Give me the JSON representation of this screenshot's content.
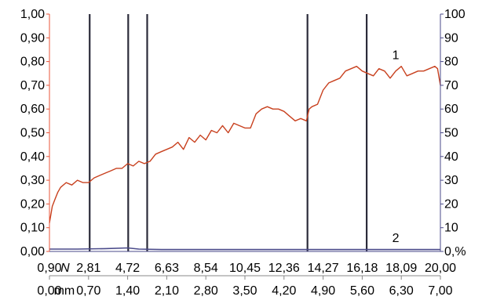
{
  "chart_data": {
    "type": "line",
    "title": "",
    "left_axis": {
      "range": [
        0,
        1
      ],
      "ticks": [
        0,
        0.1,
        0.2,
        0.3,
        0.4,
        0.5,
        0.6,
        0.7,
        0.8,
        0.9,
        1.0
      ],
      "tick_labels": [
        "0,00",
        "0,10",
        "0,20",
        "0,30",
        "0,40",
        "0,50",
        "0,60",
        "0,70",
        "0,80",
        "0,90",
        "1,00"
      ],
      "color": "#e8553a"
    },
    "right_axis": {
      "range": [
        0,
        100
      ],
      "ticks": [
        0,
        10,
        20,
        30,
        40,
        50,
        60,
        70,
        80,
        90,
        100
      ],
      "tick_labels": [
        "0",
        "10",
        "20",
        "30",
        "40",
        "50",
        "60",
        "70",
        "80",
        "90",
        "100"
      ],
      "unit": ",%",
      "color": "#4a4a8a"
    },
    "x_axis_top": {
      "range": [
        0.9,
        20.0
      ],
      "ticks": [
        0.9,
        2.81,
        4.72,
        6.63,
        8.54,
        10.45,
        12.36,
        14.27,
        16.18,
        18.09,
        20.0
      ],
      "tick_labels": [
        "0,90",
        "2,81",
        "4,72",
        "6,63",
        "8,54",
        "10,45",
        "12,36",
        "14,27",
        "16,18",
        "18,09",
        "20,00"
      ],
      "unit": "N"
    },
    "x_axis_bottom": {
      "range": [
        0.0,
        7.0
      ],
      "ticks": [
        0.0,
        0.7,
        1.4,
        2.1,
        2.8,
        3.5,
        4.2,
        4.9,
        5.6,
        6.3,
        7.0
      ],
      "tick_labels": [
        "0,00",
        "0,70",
        "1,40",
        "2,10",
        "2,80",
        "3,50",
        "4,20",
        "4,90",
        "5,60",
        "6,30",
        "7,00"
      ],
      "unit": "mm"
    },
    "vertical_markers_mm": [
      0.72,
      1.41,
      1.75,
      4.62,
      5.68
    ],
    "grid": false,
    "series": [
      {
        "name": "1",
        "axis": "left",
        "color": "#c8401e",
        "x_mm": [
          0.0,
          0.05,
          0.1,
          0.15,
          0.2,
          0.3,
          0.4,
          0.5,
          0.6,
          0.7,
          0.8,
          0.9,
          1.0,
          1.1,
          1.2,
          1.3,
          1.4,
          1.5,
          1.6,
          1.7,
          1.8,
          1.9,
          2.0,
          2.1,
          2.2,
          2.3,
          2.4,
          2.5,
          2.6,
          2.7,
          2.8,
          2.9,
          3.0,
          3.1,
          3.2,
          3.3,
          3.4,
          3.5,
          3.6,
          3.7,
          3.8,
          3.9,
          4.0,
          4.1,
          4.2,
          4.3,
          4.4,
          4.5,
          4.6,
          4.65,
          4.7,
          4.8,
          4.9,
          5.0,
          5.1,
          5.2,
          5.3,
          5.4,
          5.5,
          5.6,
          5.7,
          5.8,
          5.9,
          6.0,
          6.1,
          6.2,
          6.3,
          6.4,
          6.5,
          6.6,
          6.7,
          6.8,
          6.9,
          6.95,
          7.0
        ],
        "y": [
          0.12,
          0.19,
          0.22,
          0.25,
          0.27,
          0.29,
          0.28,
          0.3,
          0.29,
          0.29,
          0.31,
          0.32,
          0.33,
          0.34,
          0.35,
          0.35,
          0.37,
          0.36,
          0.38,
          0.37,
          0.38,
          0.41,
          0.42,
          0.43,
          0.44,
          0.46,
          0.43,
          0.48,
          0.46,
          0.49,
          0.47,
          0.51,
          0.5,
          0.53,
          0.5,
          0.54,
          0.53,
          0.52,
          0.52,
          0.58,
          0.6,
          0.61,
          0.6,
          0.6,
          0.59,
          0.57,
          0.55,
          0.56,
          0.55,
          0.6,
          0.61,
          0.62,
          0.68,
          0.71,
          0.72,
          0.73,
          0.76,
          0.77,
          0.78,
          0.76,
          0.75,
          0.74,
          0.77,
          0.76,
          0.73,
          0.76,
          0.78,
          0.74,
          0.75,
          0.76,
          0.76,
          0.77,
          0.78,
          0.77,
          0.7
        ]
      },
      {
        "name": "2",
        "axis": "right",
        "color": "#4a4a8a",
        "x_mm": [
          0.0,
          0.5,
          1.0,
          1.4,
          1.6,
          2.0,
          3.0,
          4.0,
          5.0,
          6.0,
          7.0
        ],
        "y": [
          1.0,
          1.0,
          1.2,
          1.5,
          1.0,
          0.8,
          0.8,
          0.8,
          0.8,
          0.8,
          0.8
        ]
      }
    ],
    "annotations": [
      {
        "text": "1",
        "x_mm": 6.2,
        "y_left": 0.81
      },
      {
        "text": "2",
        "x_mm": 6.2,
        "y_left": 0.04
      }
    ]
  }
}
